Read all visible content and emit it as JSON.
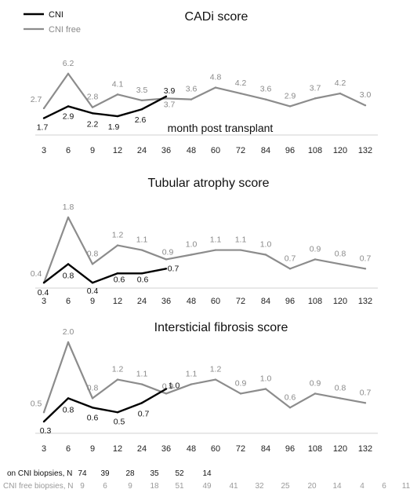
{
  "colors": {
    "cni": "#000000",
    "cni_free": "#8c8c8c",
    "axis": "#d0d0d0"
  },
  "legend": [
    {
      "name": "CNI",
      "color": "#000000"
    },
    {
      "name": "CNI free",
      "color": "#8c8c8c"
    }
  ],
  "chart_data": [
    {
      "type": "line",
      "title": "CADi score",
      "xlabel": "month post transplant",
      "ylabel": "",
      "categories": [
        "3",
        "6",
        "9",
        "12",
        "24",
        "36",
        "48",
        "60",
        "72",
        "84",
        "96",
        "108",
        "120",
        "132"
      ],
      "legend_position": "top-left",
      "series": [
        {
          "name": "CNI",
          "values": [
            1.7,
            2.9,
            2.2,
            1.9,
            2.6,
            3.9,
            null,
            null,
            null,
            null,
            null,
            null,
            null,
            null
          ]
        },
        {
          "name": "CNI free",
          "values": [
            2.7,
            6.2,
            2.8,
            4.1,
            3.5,
            3.7,
            3.6,
            4.8,
            4.2,
            3.6,
            2.9,
            3.7,
            4.2,
            3.0
          ]
        }
      ]
    },
    {
      "type": "line",
      "title": "Tubular atrophy score",
      "xlabel": "",
      "ylabel": "",
      "categories": [
        "3",
        "6",
        "9",
        "12",
        "24",
        "36",
        "48",
        "60",
        "72",
        "84",
        "96",
        "108",
        "120",
        "132"
      ],
      "series": [
        {
          "name": "CNI",
          "values": [
            0.4,
            0.8,
            0.4,
            0.6,
            0.6,
            0.7,
            null,
            null,
            null,
            null,
            null,
            null,
            null,
            null
          ]
        },
        {
          "name": "CNI free",
          "values": [
            0.4,
            1.8,
            0.8,
            1.2,
            1.1,
            0.9,
            1.0,
            1.1,
            1.1,
            1.0,
            0.7,
            0.9,
            0.8,
            0.7
          ]
        }
      ]
    },
    {
      "type": "line",
      "title": "Intersticial fibrosis score",
      "xlabel": "",
      "ylabel": "",
      "categories": [
        "3",
        "6",
        "9",
        "12",
        "24",
        "36",
        "48",
        "60",
        "72",
        "84",
        "96",
        "108",
        "120",
        "132"
      ],
      "series": [
        {
          "name": "CNI",
          "values": [
            0.3,
            0.8,
            0.6,
            0.5,
            0.7,
            1.0,
            null,
            null,
            null,
            null,
            null,
            null,
            null,
            null
          ]
        },
        {
          "name": "CNI free",
          "values": [
            0.5,
            2.0,
            0.8,
            1.2,
            1.1,
            0.9,
            1.1,
            1.2,
            0.9,
            1.0,
            0.6,
            0.9,
            0.8,
            0.7
          ]
        }
      ]
    }
  ],
  "counts": {
    "cni_label": "on CNI biopsies, N",
    "cni_values": [
      "74",
      "39",
      "28",
      "35",
      "52",
      "14"
    ],
    "free_label": "CNI free biopsies, N",
    "free_values": [
      "9",
      "6",
      "9",
      "18",
      "51",
      "49",
      "41",
      "32",
      "25",
      "20",
      "14",
      "4",
      "6",
      "11"
    ]
  }
}
